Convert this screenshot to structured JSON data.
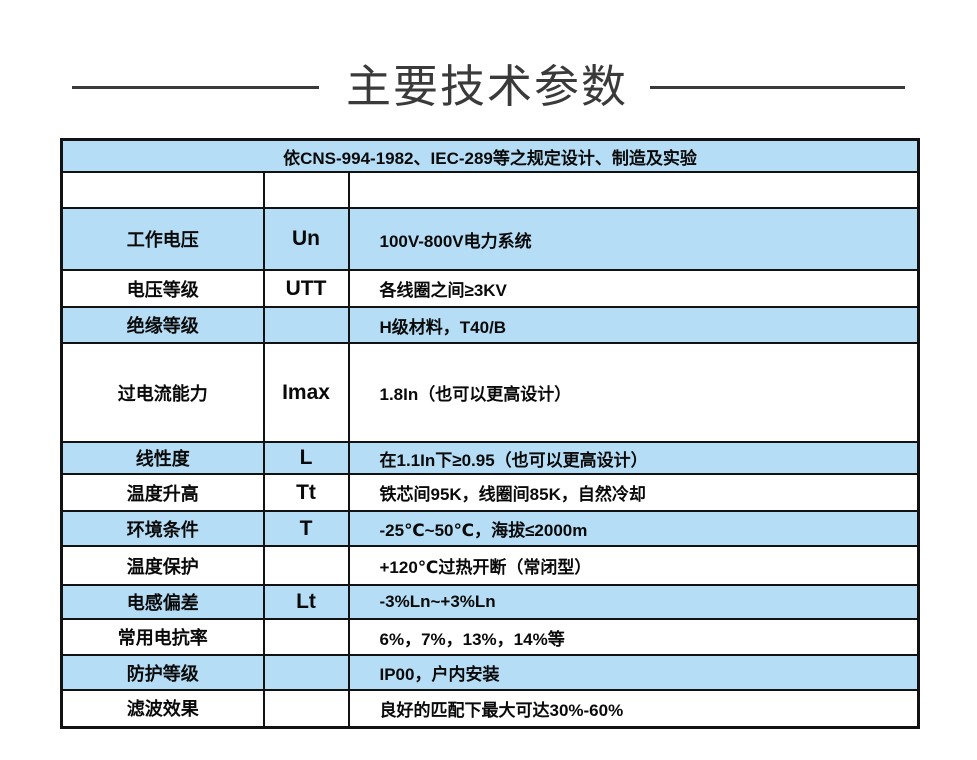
{
  "title": {
    "text": "主要技术参数"
  },
  "table": {
    "header": "依CNS-994-1982、IEC-289等之规定设计、制造及实验",
    "rows": [
      {
        "label": "",
        "symbol": "",
        "value": "",
        "shade": "white",
        "height": 36
      },
      {
        "label": "工作电压",
        "symbol": "Un",
        "value": "100V-800V电力系统",
        "shade": "blue",
        "height": 62
      },
      {
        "label": "电压等级",
        "symbol": "UTT",
        "value": "各线圈之间≥3KV",
        "shade": "white",
        "height": 37
      },
      {
        "label": "绝缘等级",
        "symbol": "",
        "value": "H级材料，T40/B",
        "shade": "blue",
        "height": 36
      },
      {
        "label": "过电流能力",
        "symbol": "Imax",
        "value": "1.8In（也可以更高设计）",
        "shade": "white",
        "height": 99
      },
      {
        "label": "线性度",
        "symbol": "L",
        "value": "在1.1In下≥0.95（也可以更高设计）",
        "shade": "blue",
        "height": 32
      },
      {
        "label": "温度升高",
        "symbol": "Tt",
        "value": "铁芯间95K，线圈间85K，自然冷却",
        "shade": "white",
        "height": 37
      },
      {
        "label": "环境条件",
        "symbol": "T",
        "value": "-25℃~50℃，海拔≤2000m",
        "shade": "blue",
        "height": 35
      },
      {
        "label": "温度保护",
        "symbol": "",
        "value": "+120℃过热开断（常闭型）",
        "shade": "white",
        "height": 39
      },
      {
        "label": "电感偏差",
        "symbol": "Lt",
        "value": "-3%Ln~+3%Ln",
        "shade": "blue",
        "height": 34
      },
      {
        "label": "常用电抗率",
        "symbol": "",
        "value": "6%，7%，13%，14%等",
        "shade": "white",
        "height": 36
      },
      {
        "label": "防护等级",
        "symbol": "",
        "value": "IP00，户内安装",
        "shade": "blue",
        "height": 35
      },
      {
        "label": "滤波效果",
        "symbol": "",
        "value": "良好的匹配下最大可达30%-60%",
        "shade": "white",
        "height": 37
      }
    ]
  },
  "colors": {
    "row_blue": "#b5def6",
    "border": "#121212",
    "title": "#3a3a3a",
    "text": "#0a0a0a",
    "background": "#ffffff"
  }
}
